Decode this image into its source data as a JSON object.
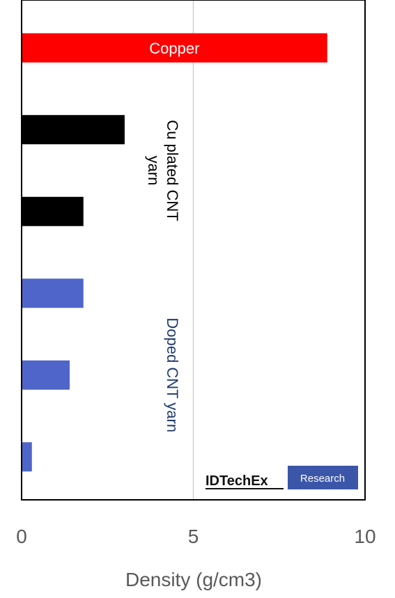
{
  "chart_data": {
    "type": "bar",
    "orientation": "horizontal",
    "categories": [
      "Copper",
      "",
      "",
      "",
      "",
      ""
    ],
    "values": [
      8.9,
      3.0,
      1.8,
      1.8,
      1.4,
      0.3
    ],
    "bar_colors": [
      "#ff0000",
      "#000000",
      "#000000",
      "#4f65c9",
      "#4f65c9",
      "#4f65c9"
    ],
    "bar_labels": [
      "Copper",
      "",
      "",
      "",
      "",
      ""
    ],
    "groups": [
      {
        "label": "Cu plated CNT yarn",
        "lines": [
          "Cu plated CNT",
          "yarn"
        ],
        "color": "#000000",
        "bars": [
          1,
          2
        ]
      },
      {
        "label": "Doped CNT yarn",
        "lines": [
          "Doped CNT yarn"
        ],
        "color": "#1f3c70",
        "bars": [
          3,
          4,
          5
        ]
      }
    ],
    "xlabel": "Density (g/cm3)",
    "xlim": [
      0,
      10
    ],
    "xticks": [
      "0",
      "5",
      "10"
    ],
    "ylabel": "",
    "grid": true
  },
  "logo": {
    "brand": "IDTechEx",
    "suffix": "Research",
    "brand_color": "#3b56a8"
  }
}
